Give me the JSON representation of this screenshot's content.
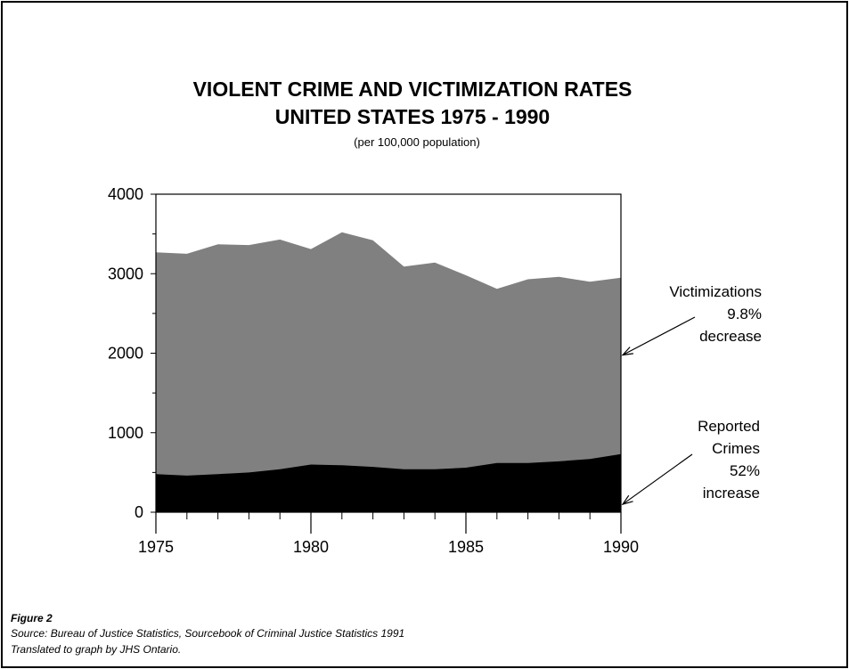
{
  "chart_data": {
    "type": "area",
    "title": [
      "VIOLENT CRIME AND VICTIMIZATION RATES",
      "UNITED STATES 1975 - 1990"
    ],
    "subtitle": "(per 100,000 population)",
    "x": [
      1975,
      1976,
      1977,
      1978,
      1979,
      1980,
      1981,
      1982,
      1983,
      1984,
      1985,
      1986,
      1987,
      1988,
      1989,
      1990
    ],
    "xlim": [
      1975,
      1990
    ],
    "ylim": [
      0,
      4000
    ],
    "x_ticks": [
      1975,
      1980,
      1985,
      1990
    ],
    "y_ticks": [
      0,
      1000,
      2000,
      3000,
      4000
    ],
    "grid": false,
    "legend": "none",
    "series": [
      {
        "name": "Victimizations",
        "color": "#808080",
        "values": [
          3270,
          3250,
          3370,
          3360,
          3430,
          3310,
          3520,
          3420,
          3090,
          3140,
          2980,
          2810,
          2930,
          2960,
          2900,
          2950
        ]
      },
      {
        "name": "Reported Crimes",
        "color": "#000000",
        "values": [
          480,
          460,
          480,
          500,
          540,
          600,
          590,
          570,
          540,
          540,
          560,
          620,
          620,
          640,
          670,
          730
        ]
      }
    ],
    "annotations": [
      {
        "target": "Victimizations",
        "lines": [
          "Victimizations",
          "9.8%",
          "decrease"
        ]
      },
      {
        "target": "Reported Crimes",
        "lines": [
          "Reported",
          "Crimes",
          "52%",
          "increase"
        ]
      }
    ]
  },
  "caption": {
    "figure": "Figure  2",
    "source": "Source:  Bureau of Justice Statistics, Sourcebook of Criminal Justice Statistics 1991",
    "credit": "Translated to graph by JHS Ontario."
  }
}
